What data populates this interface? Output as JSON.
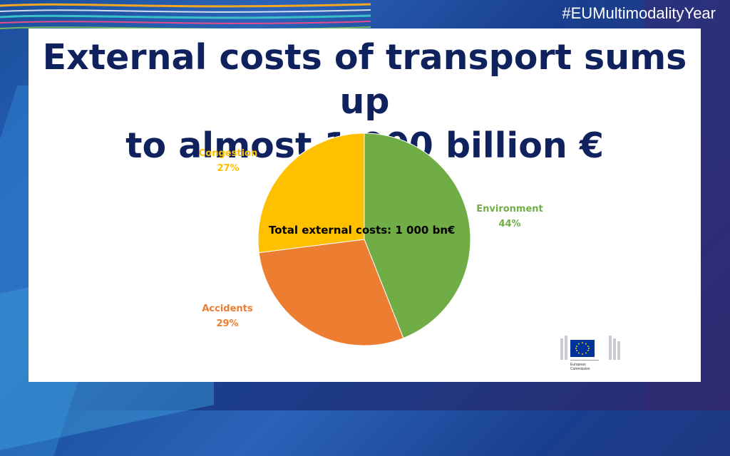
{
  "hashtag": "#EUMultimodalityYear",
  "title": {
    "line1": "External costs of transport sums up",
    "line2": "to almost 1 000 billion €"
  },
  "chart_data": {
    "type": "pie",
    "center_label": "Total external costs: 1 000 bn€",
    "slices": [
      {
        "name": "Environment",
        "label": "44%",
        "value": 44,
        "color": "#71ad47"
      },
      {
        "name": "Accidents",
        "label": "29%",
        "value": 29,
        "color": "#ed7d31"
      },
      {
        "name": "Congestion",
        "label": "27%",
        "value": 27,
        "color": "#ffc000"
      }
    ]
  },
  "logo": {
    "line1": "European",
    "line2": "Commission"
  }
}
